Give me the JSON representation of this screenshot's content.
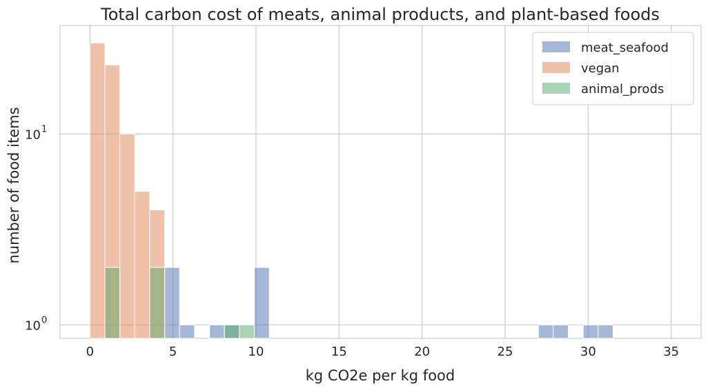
{
  "chart_data": {
    "type": "bar",
    "title": "Total carbon cost of meats, animal products, and plant-based foods",
    "xlabel": "kg CO2e per kg food",
    "ylabel": "number of food items",
    "y_scale": "log",
    "xlim": [
      -1.8,
      36.8
    ],
    "ylim": [
      0.85,
      37
    ],
    "x_ticks": [
      0,
      5,
      10,
      15,
      20,
      25,
      30,
      35
    ],
    "y_ticks": [
      {
        "value": 1,
        "base": "10",
        "exp": "0"
      },
      {
        "value": 10,
        "base": "10",
        "exp": "1"
      }
    ],
    "bin_width": 0.9,
    "grid": true,
    "legend_position": "top-right",
    "series": [
      {
        "name": "meat_seafood",
        "color": "#4c72b0",
        "bars": [
          {
            "x0": 4.5,
            "count": 2
          },
          {
            "x0": 5.4,
            "count": 1
          },
          {
            "x0": 7.2,
            "count": 1
          },
          {
            "x0": 8.1,
            "count": 1
          },
          {
            "x0": 9.9,
            "count": 2
          },
          {
            "x0": 27.0,
            "count": 1
          },
          {
            "x0": 27.9,
            "count": 1
          },
          {
            "x0": 29.7,
            "count": 1
          },
          {
            "x0": 30.6,
            "count": 1
          }
        ]
      },
      {
        "name": "vegan",
        "color": "#dd8452",
        "bars": [
          {
            "x0": 0.0,
            "count": 30
          },
          {
            "x0": 0.9,
            "count": 23
          },
          {
            "x0": 1.8,
            "count": 10
          },
          {
            "x0": 2.7,
            "count": 5
          },
          {
            "x0": 3.6,
            "count": 4
          }
        ]
      },
      {
        "name": "animal_prods",
        "color": "#55a868",
        "bars": [
          {
            "x0": 0.9,
            "count": 2
          },
          {
            "x0": 3.6,
            "count": 2
          },
          {
            "x0": 8.1,
            "count": 1
          },
          {
            "x0": 9.0,
            "count": 1
          }
        ]
      }
    ]
  }
}
